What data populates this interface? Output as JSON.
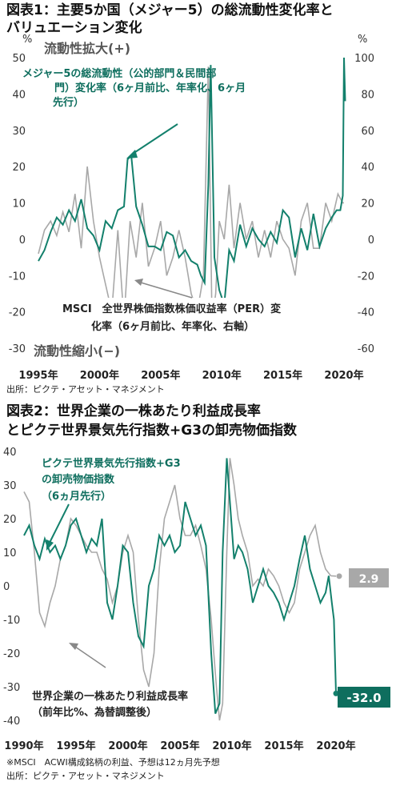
{
  "chart1": {
    "title_line1": "図表1：主要5か国（メジャー5）の総流動性変化率と",
    "title_line2": "バリュエーション変化",
    "source": "出所：ピクテ・アセット・マネジメント",
    "top_label": "流動性拡大(+)",
    "bottom_label": "流動性縮小(−)",
    "left_unit": "%",
    "right_unit": "%",
    "ann_teal_1": "メジャー5の総流動性（公的部門＆民間部",
    "ann_teal_2": "門）変化率（6ヶ月前比、年率化、6ヶ月",
    "ann_teal_3": "先行）",
    "ann_gray_1": "MSCI　全世界株価指数株価収益率（PER）変",
    "ann_gray_2": "化率（6ヶ月前比、年率化、右軸）",
    "colors": {
      "teal": "#13806c",
      "gray": "#a8a8a8"
    }
  },
  "chart2": {
    "title_line1": "図表2：世界企業の一株あたり利益成長率",
    "title_line2": "とピクテ世界景気先行指数+G3の卸売物価指数",
    "ann_teal_1": "ピクテ世界景気先行指数+G3",
    "ann_teal_2": "の卸売物価指数",
    "ann_teal_3": "（6ヵ月先行）",
    "ann_gray_1": "世界企業の一株あたり利益成長率",
    "ann_gray_2": "（前年比%、為替調整後）",
    "badge_gray": "2.9",
    "badge_teal": "-32.0",
    "footnote": "※MSCI　ACWI構成銘柄の利益、予想は12ヵ月先予想",
    "source": "出所：ピクテ・アセット・マネジメント",
    "colors": {
      "teal": "#13806c",
      "gray": "#a8a8a8"
    }
  },
  "chart_data": [
    {
      "type": "line",
      "title": "図表1：主要5か国（メジャー5）の総流動性変化率とバリュエーション変化",
      "x_ticks": [
        "1995年",
        "2000年",
        "2005年",
        "2010年",
        "2015年",
        "2020年"
      ],
      "xlim": [
        1995,
        2020
      ],
      "y_left": {
        "ticks": [
          50,
          40,
          30,
          20,
          10,
          0,
          -10,
          -20,
          -30
        ],
        "lim": [
          -30,
          50
        ]
      },
      "y_right": {
        "ticks": [
          100,
          80,
          60,
          40,
          20,
          0,
          -20,
          -40,
          -60
        ],
        "lim": [
          -60,
          100
        ]
      },
      "series": [
        {
          "name": "メジャー5の総流動性（公的部門＆民間部門）変化率（6ヶ月前比、年率化、6ヶ月先行）",
          "axis": "left",
          "color": "#13806c",
          "x": [
            1995.0,
            1995.5,
            1996.0,
            1996.5,
            1997.0,
            1997.5,
            1998.0,
            1998.5,
            1999.0,
            1999.5,
            2000.0,
            2000.5,
            2001.0,
            2001.5,
            2002.0,
            2002.3,
            2002.6,
            2003.0,
            2003.5,
            2004.0,
            2004.5,
            2005.0,
            2005.5,
            2006.0,
            2006.5,
            2007.0,
            2007.5,
            2008.0,
            2008.3,
            2008.6,
            2008.9,
            2009.1,
            2009.4,
            2009.8,
            2010.2,
            2010.6,
            2011.0,
            2011.5,
            2012.0,
            2012.5,
            2013.0,
            2013.5,
            2014.0,
            2014.5,
            2015.0,
            2015.5,
            2016.0,
            2016.5,
            2017.0,
            2017.5,
            2018.0,
            2018.5,
            2019.0,
            2019.4,
            2019.7,
            2019.9,
            2020.0,
            2020.1
          ],
          "y": [
            -6,
            -3,
            2,
            6,
            4,
            8,
            5,
            11,
            3,
            1,
            -3,
            5,
            3,
            8,
            9,
            22,
            23,
            9,
            4,
            -2,
            -2,
            -3,
            2,
            1,
            -5,
            -3,
            -6,
            -7,
            -10,
            -12,
            15,
            48,
            -5,
            -14,
            -18,
            -3,
            -6,
            4,
            -2,
            3,
            0,
            -2,
            2,
            -1,
            8,
            6,
            -5,
            3,
            -3,
            7,
            -2,
            3,
            6,
            8,
            8,
            12,
            50,
            38
          ]
        },
        {
          "name": "MSCI　全世界株価指数株価収益率（PER）変化率（6ヶ月前比、年率化、右軸）",
          "axis": "right",
          "color": "#a8a8a8",
          "x": [
            1995.0,
            1995.5,
            1996.0,
            1996.5,
            1997.0,
            1997.5,
            1998.0,
            1998.5,
            1999.0,
            1999.5,
            2000.0,
            2000.5,
            2001.0,
            2001.5,
            2002.0,
            2002.5,
            2003.0,
            2003.5,
            2004.0,
            2004.5,
            2005.0,
            2005.5,
            2006.0,
            2006.5,
            2007.0,
            2007.5,
            2008.0,
            2008.5,
            2008.9,
            2009.2,
            2009.5,
            2009.8,
            2010.2,
            2010.6,
            2011.0,
            2011.5,
            2012.0,
            2012.5,
            2013.0,
            2013.5,
            2014.0,
            2014.5,
            2015.0,
            2015.5,
            2016.0,
            2016.5,
            2017.0,
            2017.5,
            2018.0,
            2018.5,
            2019.0,
            2019.5,
            2019.9,
            2020.0
          ],
          "y": [
            -8,
            5,
            10,
            2,
            15,
            4,
            25,
            -5,
            40,
            10,
            -10,
            -25,
            -40,
            5,
            -45,
            10,
            -10,
            20,
            -15,
            -5,
            10,
            -20,
            -10,
            5,
            -10,
            -30,
            -40,
            -20,
            95,
            -45,
            -30,
            10,
            0,
            30,
            -5,
            20,
            0,
            10,
            -10,
            5,
            -10,
            10,
            0,
            -5,
            -20,
            10,
            20,
            -5,
            -5,
            20,
            10,
            25,
            20,
            20
          ]
        }
      ]
    },
    {
      "type": "line",
      "title": "図表2：世界企業の一株あたり利益成長率とピクテ世界景気先行指数+G3の卸売物価指数",
      "x_ticks": [
        "1990年",
        "1995年",
        "2000年",
        "2005年",
        "2010年",
        "2015年",
        "2020年"
      ],
      "xlim": [
        1990,
        2020
      ],
      "y_left": {
        "ticks": [
          40,
          30,
          20,
          10,
          0,
          -10,
          -20,
          -30,
          -40
        ],
        "lim": [
          -40,
          40
        ]
      },
      "series": [
        {
          "name": "ピクテ世界景気先行指数+G3の卸売物価指数（6ヵ月先行）",
          "color": "#13806c",
          "x": [
            1990.0,
            1990.5,
            1991.0,
            1991.5,
            1992.0,
            1992.5,
            1993.0,
            1993.5,
            1994.0,
            1994.5,
            1995.0,
            1995.5,
            1996.0,
            1996.5,
            1997.0,
            1997.5,
            1998.0,
            1998.5,
            1999.0,
            1999.5,
            2000.0,
            2000.5,
            2001.0,
            2001.5,
            2002.0,
            2002.5,
            2003.0,
            2003.5,
            2004.0,
            2004.5,
            2005.0,
            2005.5,
            2006.0,
            2006.5,
            2007.0,
            2007.5,
            2008.0,
            2008.4,
            2008.8,
            2009.1,
            2009.5,
            2009.8,
            2010.2,
            2010.6,
            2011.0,
            2011.5,
            2012.0,
            2012.5,
            2013.0,
            2013.5,
            2014.0,
            2014.5,
            2015.0,
            2015.5,
            2016.0,
            2016.5,
            2017.0,
            2017.5,
            2018.0,
            2018.5,
            2019.0,
            2019.3,
            2019.6,
            2019.8,
            2020.0
          ],
          "y": [
            15,
            18,
            12,
            8,
            14,
            10,
            12,
            8,
            12,
            18,
            20,
            15,
            10,
            14,
            12,
            20,
            -5,
            -10,
            0,
            12,
            10,
            -5,
            -15,
            -18,
            0,
            5,
            15,
            12,
            15,
            10,
            12,
            25,
            20,
            15,
            18,
            12,
            -20,
            -38,
            -35,
            10,
            38,
            25,
            8,
            12,
            10,
            5,
            -5,
            0,
            5,
            0,
            -2,
            -5,
            -10,
            -5,
            0,
            8,
            15,
            5,
            0,
            -5,
            -2,
            3,
            -5,
            -10,
            -32
          ]
        },
        {
          "name": "世界企業の一株あたり利益成長率（前年比%、為替調整後）",
          "color": "#a8a8a8",
          "x": [
            1990.0,
            1990.5,
            1991.0,
            1991.5,
            1992.0,
            1992.5,
            1993.0,
            1993.5,
            1994.0,
            1994.5,
            1995.0,
            1995.5,
            1996.0,
            1996.5,
            1997.0,
            1997.5,
            1998.0,
            1998.5,
            1999.0,
            1999.5,
            2000.0,
            2000.5,
            2001.0,
            2001.5,
            2002.0,
            2002.5,
            2003.0,
            2003.5,
            2004.0,
            2004.5,
            2005.0,
            2005.5,
            2006.0,
            2006.5,
            2007.0,
            2007.5,
            2008.0,
            2008.5,
            2008.8,
            2009.1,
            2009.5,
            2009.8,
            2010.2,
            2010.6,
            2011.0,
            2011.5,
            2012.0,
            2012.5,
            2013.0,
            2013.5,
            2014.0,
            2014.5,
            2015.0,
            2015.5,
            2016.0,
            2016.5,
            2017.0,
            2017.5,
            2018.0,
            2018.5,
            2019.0,
            2019.5,
            2020.0
          ],
          "y": [
            28,
            25,
            10,
            -8,
            -12,
            -5,
            0,
            8,
            12,
            20,
            18,
            15,
            12,
            10,
            10,
            5,
            2,
            -5,
            0,
            10,
            15,
            10,
            -10,
            -25,
            -30,
            -20,
            5,
            20,
            25,
            30,
            20,
            15,
            15,
            18,
            12,
            5,
            -10,
            -30,
            -40,
            -35,
            10,
            38,
            30,
            20,
            15,
            10,
            0,
            2,
            0,
            5,
            3,
            0,
            -5,
            -8,
            -5,
            5,
            10,
            15,
            18,
            10,
            5,
            3,
            2.9
          ]
        }
      ],
      "annotations": {
        "latest_gray": "2.9",
        "latest_teal": "-32.0"
      }
    }
  ]
}
